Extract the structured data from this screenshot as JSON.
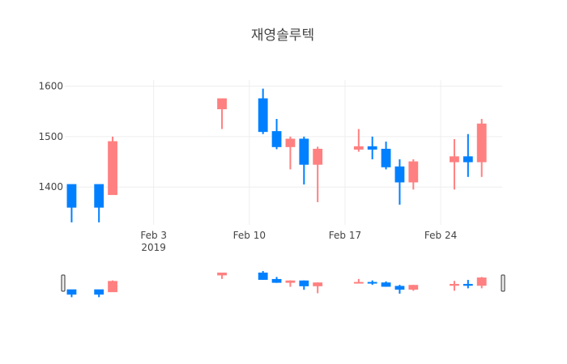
{
  "chart_data": {
    "type": "candlestick",
    "title": "재영솔루텍",
    "xlabel": "",
    "ylabel": "",
    "ylim": [
      1325,
      1612
    ],
    "xlim": [
      "2019-01-28",
      "2019-02-28"
    ],
    "grid": true,
    "legend": "none",
    "increasing_color": "#FF8080",
    "decreasing_color": "#0080FF",
    "y_ticks": [
      1400,
      1500,
      1600
    ],
    "x_ticks": [
      {
        "date": "2019-02-03",
        "label": "Feb 3",
        "sublabel": "2019"
      },
      {
        "date": "2019-02-10",
        "label": "Feb 10",
        "sublabel": ""
      },
      {
        "date": "2019-02-17",
        "label": "Feb 17",
        "sublabel": ""
      },
      {
        "date": "2019-02-24",
        "label": "Feb 24",
        "sublabel": ""
      }
    ],
    "candles": [
      {
        "date": "2019-01-28",
        "open": 1405,
        "high": 1405,
        "low": 1330,
        "close": 1360
      },
      {
        "date": "2019-01-30",
        "open": 1405,
        "high": 1405,
        "low": 1330,
        "close": 1360
      },
      {
        "date": "2019-01-31",
        "open": 1385,
        "high": 1500,
        "low": 1385,
        "close": 1490
      },
      {
        "date": "2019-02-08",
        "open": 1555,
        "high": 1575,
        "low": 1515,
        "close": 1575
      },
      {
        "date": "2019-02-11",
        "open": 1575,
        "high": 1595,
        "low": 1505,
        "close": 1510
      },
      {
        "date": "2019-02-12",
        "open": 1510,
        "high": 1535,
        "low": 1475,
        "close": 1480
      },
      {
        "date": "2019-02-13",
        "open": 1480,
        "high": 1500,
        "low": 1435,
        "close": 1495
      },
      {
        "date": "2019-02-14",
        "open": 1495,
        "high": 1500,
        "low": 1405,
        "close": 1445
      },
      {
        "date": "2019-02-15",
        "open": 1445,
        "high": 1480,
        "low": 1370,
        "close": 1475
      },
      {
        "date": "2019-02-18",
        "open": 1475,
        "high": 1515,
        "low": 1470,
        "close": 1480
      },
      {
        "date": "2019-02-19",
        "open": 1480,
        "high": 1500,
        "low": 1455,
        "close": 1475
      },
      {
        "date": "2019-02-20",
        "open": 1475,
        "high": 1490,
        "low": 1435,
        "close": 1440
      },
      {
        "date": "2019-02-21",
        "open": 1440,
        "high": 1455,
        "low": 1365,
        "close": 1410
      },
      {
        "date": "2019-02-22",
        "open": 1410,
        "high": 1455,
        "low": 1395,
        "close": 1450
      },
      {
        "date": "2019-02-25",
        "open": 1450,
        "high": 1495,
        "low": 1395,
        "close": 1460
      },
      {
        "date": "2019-02-26",
        "open": 1460,
        "high": 1505,
        "low": 1420,
        "close": 1450
      },
      {
        "date": "2019-02-27",
        "open": 1450,
        "high": 1535,
        "low": 1420,
        "close": 1525
      }
    ]
  }
}
